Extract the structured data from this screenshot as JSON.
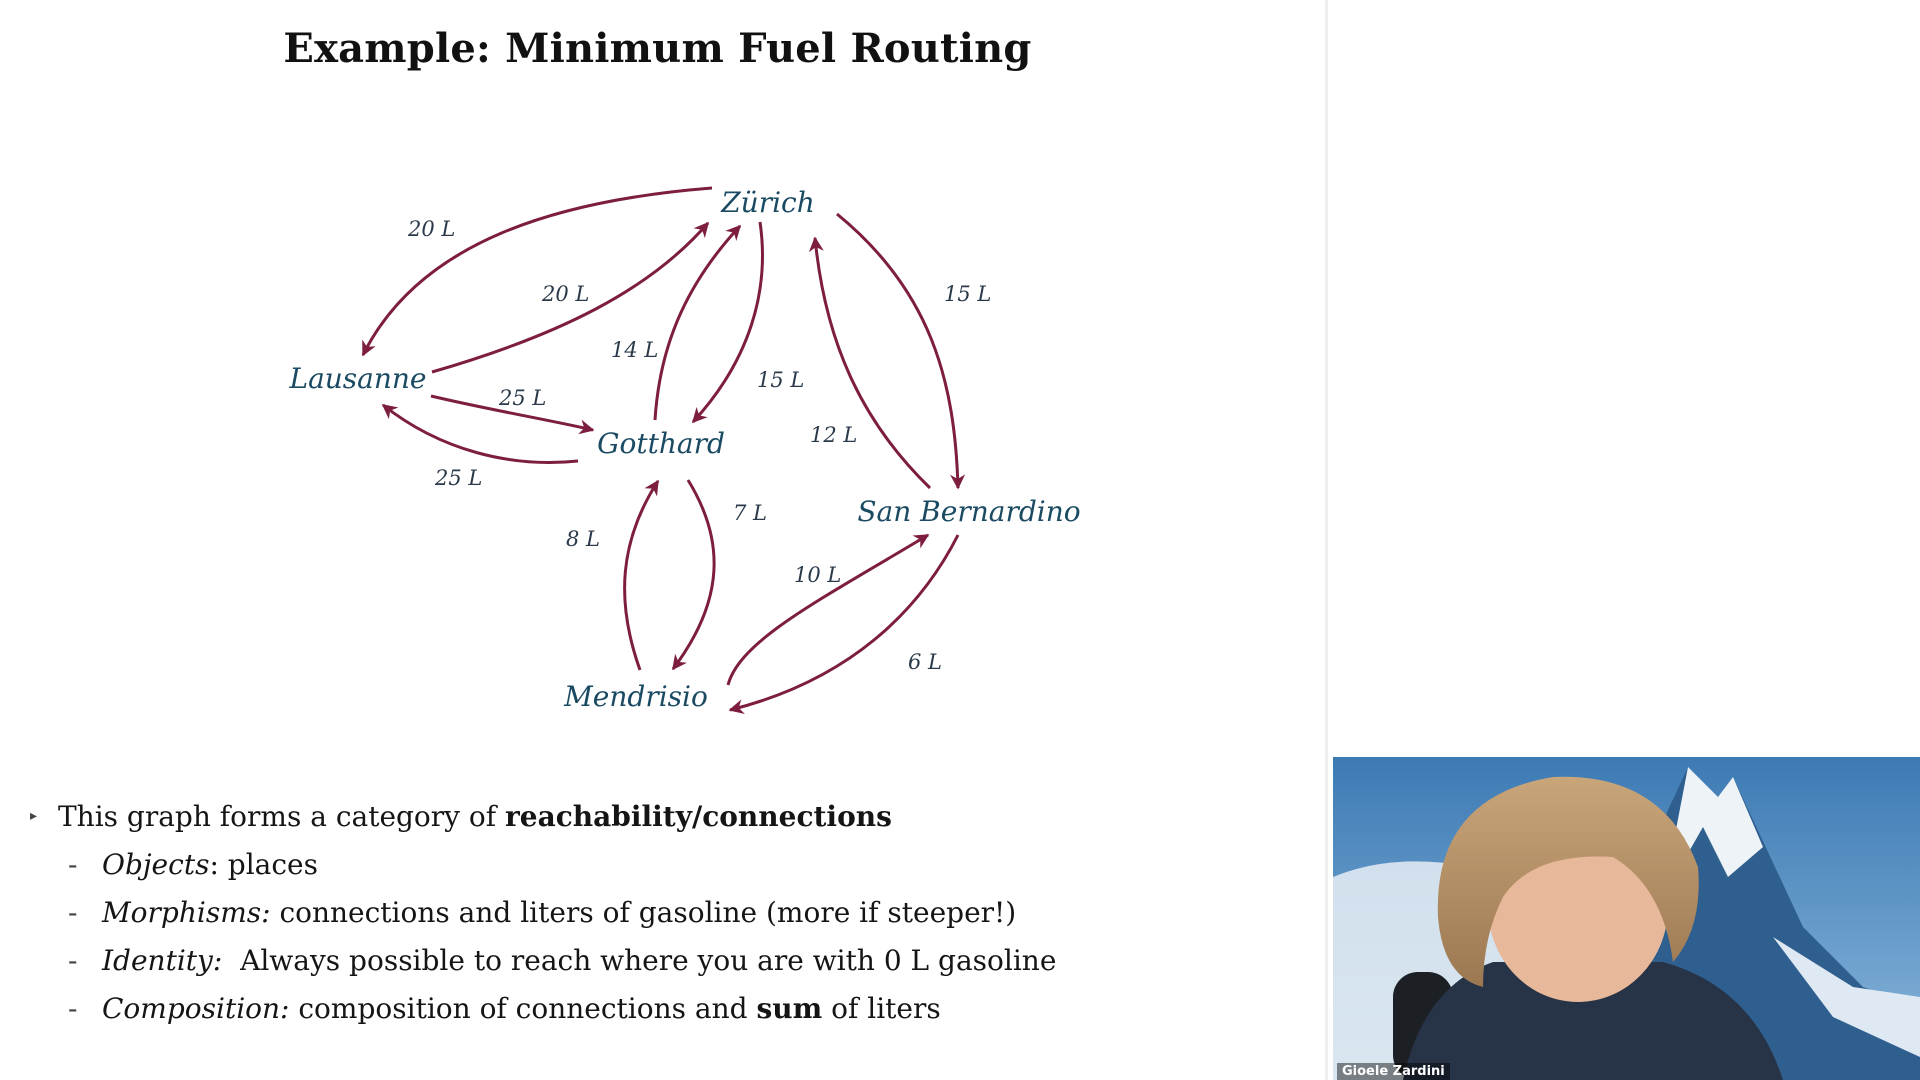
{
  "slide": {
    "title": "Example: Minimum Fuel Routing",
    "graph": {
      "nodes": {
        "zurich": "Zürich",
        "lausanne": "Lausanne",
        "gotthard": "Gotthard",
        "san_bernardino": "San Bernardino",
        "mendrisio": "Mendrisio"
      },
      "edges": {
        "zurich_lausanne": "20 L",
        "lausanne_zurich": "20 L",
        "gotthard_zurich": "14 L",
        "zurich_gotthard": "15 L",
        "zurich_san_bernardino": "15 L",
        "san_bernardino_zurich": "12 L",
        "lausanne_gotthard": "25 L",
        "gotthard_lausanne": "25 L",
        "mendrisio_gotthard": "8 L",
        "gotthard_mendrisio": "7 L",
        "mendrisio_san_bernardino": "10 L",
        "san_bernardino_mendrisio": "6 L"
      }
    },
    "bullets": {
      "main": {
        "prefix": "This graph forms a category of ",
        "bold": "reachability/connections"
      },
      "sub": [
        {
          "term": "Objects",
          "text": ": places"
        },
        {
          "term": "Morphisms:",
          "text": " connections and liters of gasoline (more if steeper!)"
        },
        {
          "term": "Identity:",
          "text": "  Always possible to reach where you are with 0 L gasoline"
        },
        {
          "term": "Composition:",
          "pre": " composition of connections and ",
          "bold": "sum",
          "post": " of liters"
        }
      ],
      "dash": "-"
    }
  },
  "webcam": {
    "participant_name": "Gioele Zardini"
  },
  "colors": {
    "edge": "#7d1d3f",
    "node_text": "#1b4a63",
    "title": "#111111"
  }
}
